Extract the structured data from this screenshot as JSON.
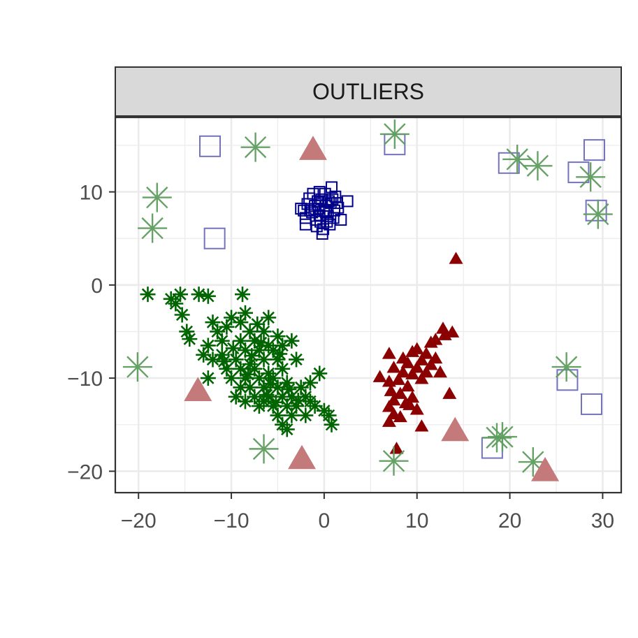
{
  "chart_data": {
    "type": "scatter",
    "title": "",
    "facet_label": "OUTLIERS",
    "xlabel": "",
    "ylabel": "",
    "xlim": [
      -22.5,
      32
    ],
    "ylim": [
      -22.3,
      18
    ],
    "x_ticks": [
      -20,
      -10,
      0,
      10,
      20,
      30
    ],
    "x_tick_labels": [
      "−20",
      "−10",
      "0",
      "10",
      "20",
      "30"
    ],
    "y_ticks": [
      -20,
      -10,
      0,
      10
    ],
    "y_tick_labels": [
      "−20",
      "−10",
      "0",
      "10"
    ],
    "grid": true,
    "legend": "none",
    "colors": {
      "blue_cluster": "#00008B",
      "green_cluster": "#006400",
      "red_cluster": "#8B0000",
      "blue_outlier": "#7373BD",
      "green_outlier": "#5E9E5E",
      "red_outlier": "#C47A7A",
      "panel_border": "#333333",
      "strip_fill": "#D9D9D9",
      "grid_major": "#EBEBEB"
    },
    "series": [
      {
        "group": "cluster-blue",
        "marker": "square",
        "points": [
          [
            0,
            8
          ],
          [
            0.5,
            9
          ],
          [
            -0.5,
            7.5
          ],
          [
            -1,
            8.5
          ],
          [
            1,
            7.2
          ],
          [
            0.3,
            6.8
          ],
          [
            -1.5,
            8
          ],
          [
            1.5,
            8.3
          ],
          [
            2.5,
            9
          ],
          [
            0.8,
            10.5
          ],
          [
            -1.2,
            9.8
          ],
          [
            -0.5,
            10
          ],
          [
            0.2,
            7.8
          ],
          [
            -0.8,
            6.3
          ],
          [
            -0.2,
            5.5
          ],
          [
            -2,
            6.5
          ],
          [
            -2.2,
            8
          ],
          [
            -2,
            7.2
          ],
          [
            1.8,
            7
          ],
          [
            -1.6,
            9.3
          ],
          [
            -0.3,
            9.2
          ],
          [
            0.7,
            8.8
          ],
          [
            1.2,
            9.5
          ],
          [
            0.6,
            6.5
          ],
          [
            -0.9,
            7
          ],
          [
            0.1,
            9.8
          ],
          [
            -0.1,
            6
          ],
          [
            -0.7,
            9
          ],
          [
            1.1,
            8
          ],
          [
            0.4,
            7.4
          ],
          [
            -1.3,
            7.8
          ],
          [
            -0.6,
            8.2
          ],
          [
            1.4,
            8.8
          ],
          [
            0.9,
            9.2
          ],
          [
            -1.8,
            8.7
          ],
          [
            -2.5,
            8.2
          ],
          [
            -0.4,
            6.8
          ],
          [
            0.2,
            8.5
          ]
        ]
      },
      {
        "group": "cluster-green",
        "marker": "asterisk",
        "points": [
          [
            -19,
            -1
          ],
          [
            -16.5,
            -1.5
          ],
          [
            -15.5,
            -1
          ],
          [
            -16,
            -2
          ],
          [
            -15.3,
            -3.2
          ],
          [
            -14.8,
            -5
          ],
          [
            -14.5,
            -5.8
          ],
          [
            -13.5,
            -1
          ],
          [
            -12.5,
            -1.2
          ],
          [
            -12,
            -4
          ],
          [
            -12.5,
            -10
          ],
          [
            -13,
            -7.5
          ],
          [
            -12.5,
            -6.5
          ],
          [
            -12,
            -8
          ],
          [
            -11.5,
            -5
          ],
          [
            -11,
            -6
          ],
          [
            -11,
            -7.5
          ],
          [
            -10.5,
            -9
          ],
          [
            -10.5,
            -4.5
          ],
          [
            -10,
            -3.5
          ],
          [
            -10,
            -10
          ],
          [
            -9.5,
            -12
          ],
          [
            -9.5,
            -8
          ],
          [
            -9,
            -4
          ],
          [
            -9,
            -6
          ],
          [
            -9,
            -9
          ],
          [
            -9,
            -11
          ],
          [
            -8.8,
            -1
          ],
          [
            -8.5,
            -3
          ],
          [
            -8.5,
            -7
          ],
          [
            -8.5,
            -10
          ],
          [
            -8.5,
            -12.5
          ],
          [
            -8,
            -5
          ],
          [
            -8,
            -8.5
          ],
          [
            -8,
            -11
          ],
          [
            -7.5,
            -6
          ],
          [
            -7.5,
            -9
          ],
          [
            -7.5,
            -12
          ],
          [
            -7,
            -7
          ],
          [
            -7,
            -10
          ],
          [
            -7,
            -13
          ],
          [
            -6.5,
            -5
          ],
          [
            -6.5,
            -8
          ],
          [
            -6.5,
            -11
          ],
          [
            -6.5,
            -12.5
          ],
          [
            -6,
            -3.5
          ],
          [
            -6,
            -6.5
          ],
          [
            -6,
            -9.5
          ],
          [
            -6,
            -12
          ],
          [
            -5.5,
            -7
          ],
          [
            -5.5,
            -10
          ],
          [
            -5.5,
            -13
          ],
          [
            -5,
            -5.5
          ],
          [
            -5,
            -8
          ],
          [
            -5,
            -11
          ],
          [
            -5,
            -14
          ],
          [
            -4.5,
            -6.5
          ],
          [
            -4.5,
            -9
          ],
          [
            -4.5,
            -12
          ],
          [
            -4.5,
            -15
          ],
          [
            -4,
            -10.5
          ],
          [
            -4,
            -13
          ],
          [
            -4,
            -15.5
          ],
          [
            -3.5,
            -6
          ],
          [
            -3.5,
            -12
          ],
          [
            -3.5,
            -14
          ],
          [
            -3,
            -8
          ],
          [
            -3,
            -13
          ],
          [
            -2.5,
            -11
          ],
          [
            -2,
            -12
          ],
          [
            -2,
            -14
          ],
          [
            -1.5,
            -10.5
          ],
          [
            -1.5,
            -12.5
          ],
          [
            -1,
            -13
          ],
          [
            -0.5,
            -9.5
          ],
          [
            0,
            -13.5
          ],
          [
            0.5,
            -14
          ],
          [
            0.8,
            -15
          ],
          [
            -7.2,
            -4.2
          ],
          [
            -6.8,
            -6.2
          ],
          [
            -5.8,
            -10.6
          ],
          [
            -4.8,
            -7.4
          ],
          [
            -9.8,
            -6.8
          ],
          [
            -10.8,
            -8.2
          ],
          [
            -3.8,
            -11.2
          ],
          [
            -2.8,
            -12.4
          ],
          [
            -8.2,
            -9.6
          ],
          [
            -7.8,
            -7.6
          ],
          [
            -6.2,
            -11.8
          ],
          [
            -5.2,
            -12.6
          ]
        ]
      },
      {
        "group": "cluster-red",
        "marker": "triangle",
        "points": [
          [
            14.2,
            2.7
          ],
          [
            12.8,
            -4.8
          ],
          [
            13.8,
            -5.2
          ],
          [
            13,
            -5.5
          ],
          [
            12,
            -6
          ],
          [
            11.5,
            -6.3
          ],
          [
            10,
            -7
          ],
          [
            9.5,
            -7.3
          ],
          [
            11,
            -7.5
          ],
          [
            8.5,
            -8
          ],
          [
            10.5,
            -8.2
          ],
          [
            12,
            -8
          ],
          [
            7,
            -7.5
          ],
          [
            9,
            -8.5
          ],
          [
            11.5,
            -8.7
          ],
          [
            7.5,
            -9
          ],
          [
            10,
            -9
          ],
          [
            8.5,
            -9.5
          ],
          [
            9.5,
            -9.7
          ],
          [
            11,
            -9.5
          ],
          [
            12.5,
            -9.5
          ],
          [
            6,
            -10
          ],
          [
            7,
            -10.5
          ],
          [
            8,
            -10.3
          ],
          [
            10.5,
            -10.2
          ],
          [
            9,
            -11
          ],
          [
            7.2,
            -11.5
          ],
          [
            8.2,
            -11.8
          ],
          [
            13.5,
            -11.8
          ],
          [
            9.5,
            -12.2
          ],
          [
            7.5,
            -12.5
          ],
          [
            8.8,
            -12.8
          ],
          [
            7,
            -13.2
          ],
          [
            9.2,
            -13
          ],
          [
            10,
            -13.5
          ],
          [
            7.5,
            -14
          ],
          [
            8.2,
            -14.3
          ],
          [
            7,
            -14.8
          ],
          [
            10.5,
            -15.3
          ],
          [
            7.8,
            -17.7
          ]
        ]
      },
      {
        "group": "outlier-blue",
        "marker": "square-large",
        "points": [
          [
            -12.3,
            14.9
          ],
          [
            7.6,
            15.1
          ],
          [
            -11.8,
            5
          ],
          [
            19.9,
            13.1
          ],
          [
            27.4,
            12.1
          ],
          [
            29.1,
            14.5
          ],
          [
            29.3,
            8
          ],
          [
            26.2,
            -10.2
          ],
          [
            28.8,
            -12.8
          ],
          [
            18.1,
            -17.5
          ]
        ]
      },
      {
        "group": "outlier-green",
        "marker": "asterisk-large",
        "points": [
          [
            7.6,
            16.2
          ],
          [
            -7.4,
            14.8
          ],
          [
            20.8,
            13.5
          ],
          [
            23,
            12.8
          ],
          [
            28.7,
            11.6
          ],
          [
            29.5,
            7.6
          ],
          [
            -18,
            9.4
          ],
          [
            -18.5,
            6.1
          ],
          [
            -20.1,
            -8.8
          ],
          [
            26.1,
            -8.8
          ],
          [
            -6.5,
            -17.6
          ],
          [
            7.5,
            -18.9
          ],
          [
            18.6,
            -16.4
          ],
          [
            19.2,
            -16.3
          ],
          [
            22.5,
            -19
          ]
        ]
      },
      {
        "group": "outlier-red",
        "marker": "triangle-large",
        "points": [
          [
            -1.2,
            14.3
          ],
          [
            -13.6,
            -11.6
          ],
          [
            -2.4,
            -18.9
          ],
          [
            14.1,
            -15.9
          ],
          [
            23.8,
            -20.2
          ]
        ]
      }
    ]
  }
}
